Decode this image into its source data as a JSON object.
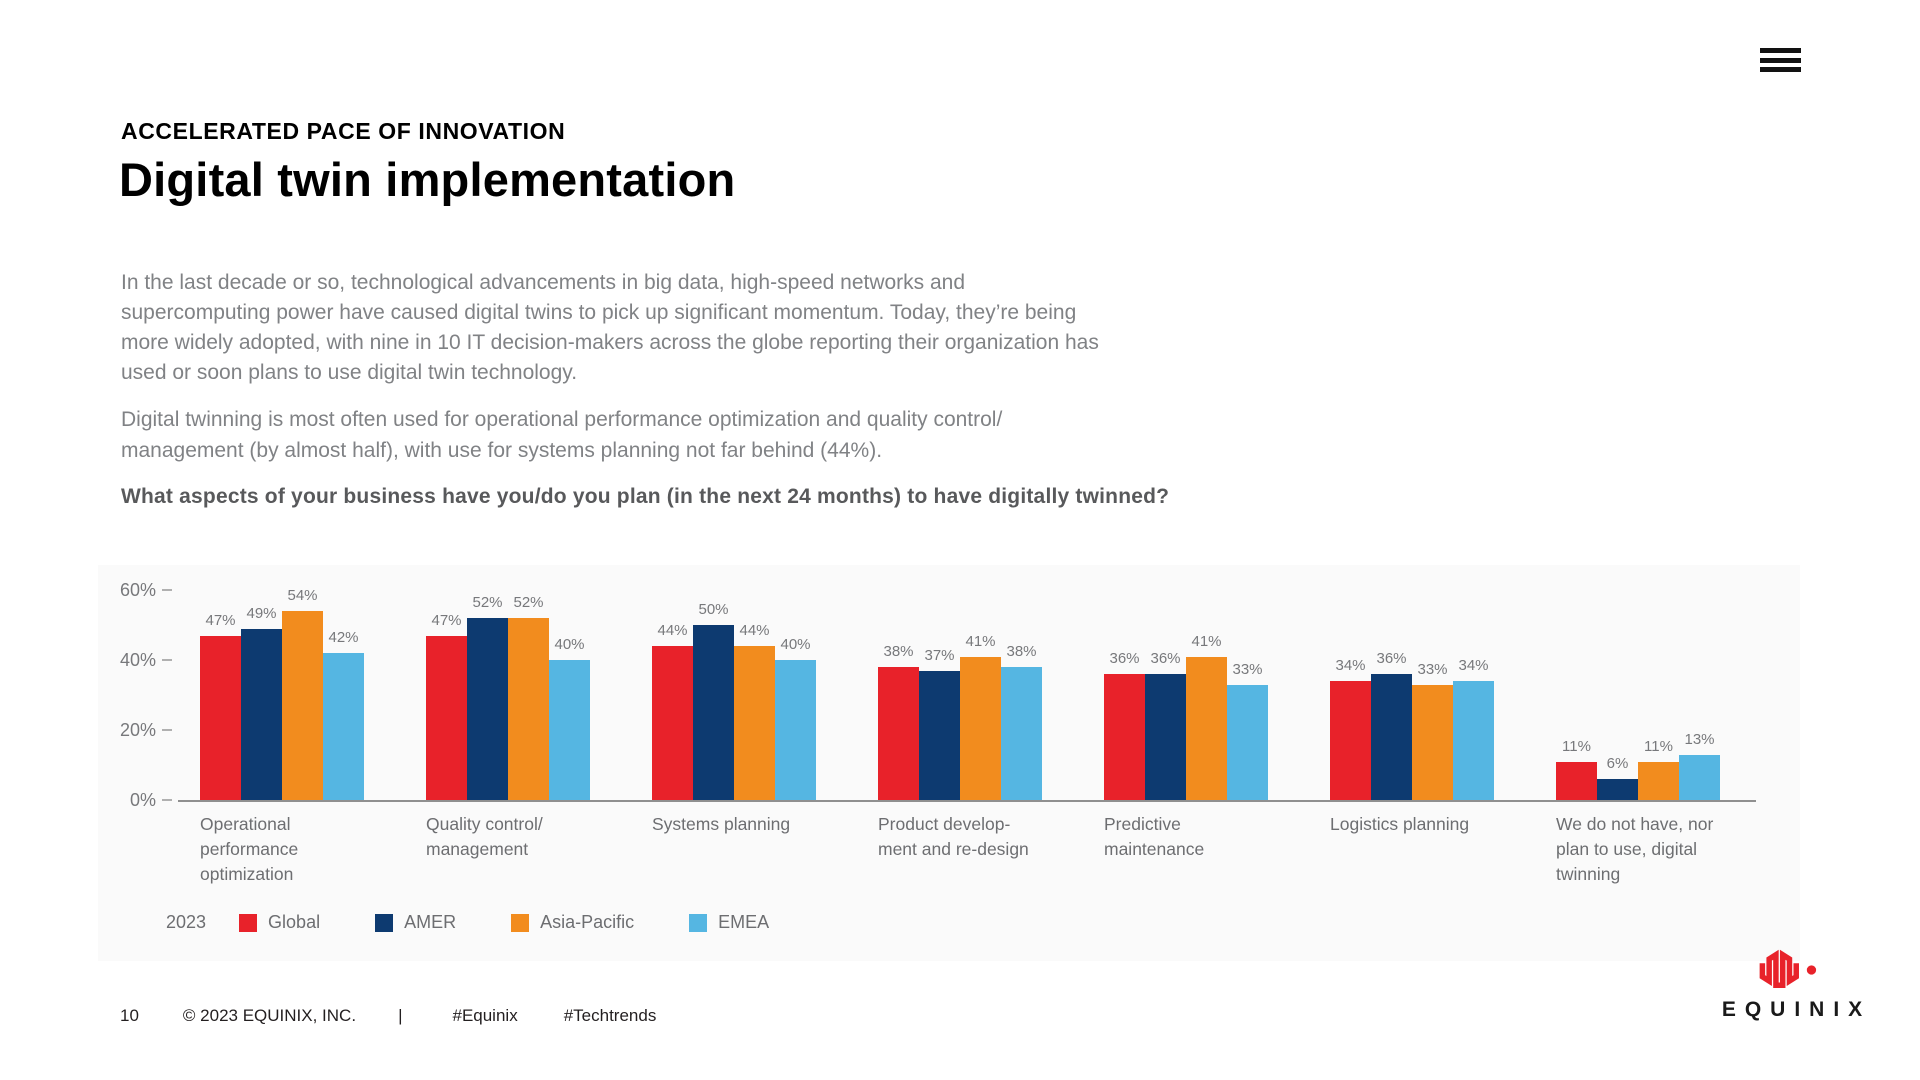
{
  "header": {
    "eyebrow": "ACCELERATED PACE OF INNOVATION",
    "title": "Digital twin implementation"
  },
  "body": {
    "paragraph1_lines": [
      "In the last decade or so, technological advancements in big data, high-speed networks and",
      "supercomputing power have caused digital twins to pick up significant momentum. Today, they’re being",
      "more widely adopted, with nine in 10 IT decision-makers across the globe reporting their organization has",
      "used or soon plans to use digital twin technology."
    ],
    "paragraph2_lines": [
      "Digital twinning is most often used for operational performance optimization and quality control/",
      "management (by almost half), with use for systems planning not far behind (44%)."
    ],
    "question": "What aspects of your business have you/do you plan (in the next 24 months) to have digitally twinned?"
  },
  "chart_data": {
    "type": "bar",
    "title": "What aspects of your business have you/do you plan (in the next 24 months) to have digitally twinned?",
    "categories": [
      "Operational performance optimization",
      "Quality control/ management",
      "Systems planning",
      "Product development and re-design",
      "Predictive maintenance",
      "Logistics planning",
      "We do not have, nor plan to use, digital twinning"
    ],
    "category_lines": [
      [
        "Operational",
        "performance",
        "optimization"
      ],
      [
        "Quality control/",
        "management"
      ],
      [
        "Systems planning"
      ],
      [
        "Product develop-",
        "ment and re-design"
      ],
      [
        "Predictive",
        "maintenance"
      ],
      [
        "Logistics planning"
      ],
      [
        "We do not have, nor",
        "plan to use, digital",
        "twinning"
      ]
    ],
    "series": [
      {
        "name": "Global",
        "color": "#E8222A",
        "values": [
          47,
          47,
          44,
          38,
          36,
          34,
          11
        ]
      },
      {
        "name": "AMER",
        "color": "#0D3A70",
        "values": [
          49,
          52,
          50,
          37,
          36,
          36,
          6
        ]
      },
      {
        "name": "Asia-Pacific",
        "color": "#F28C1E",
        "values": [
          54,
          52,
          44,
          41,
          41,
          33,
          11
        ]
      },
      {
        "name": "EMEA",
        "color": "#55B6E2",
        "values": [
          42,
          40,
          40,
          38,
          33,
          34,
          13
        ]
      }
    ],
    "ylim": [
      0,
      60
    ],
    "yticks": [
      {
        "value": 0,
        "label": "0%"
      },
      {
        "value": 20,
        "label": "20%"
      },
      {
        "value": 40,
        "label": "40%"
      },
      {
        "value": 60,
        "label": "60%"
      }
    ],
    "value_suffix": "%",
    "grid": false,
    "legend_position": "bottom-left",
    "legend_year": "2023"
  },
  "footer": {
    "page": "10",
    "copyright": "© 2023 EQUINIX, INC.",
    "divider": "|",
    "hashtags": [
      "#Equinix",
      "#Techtrends"
    ],
    "logo_text": "EQUINIX",
    "logo_color": "#E8222A"
  }
}
